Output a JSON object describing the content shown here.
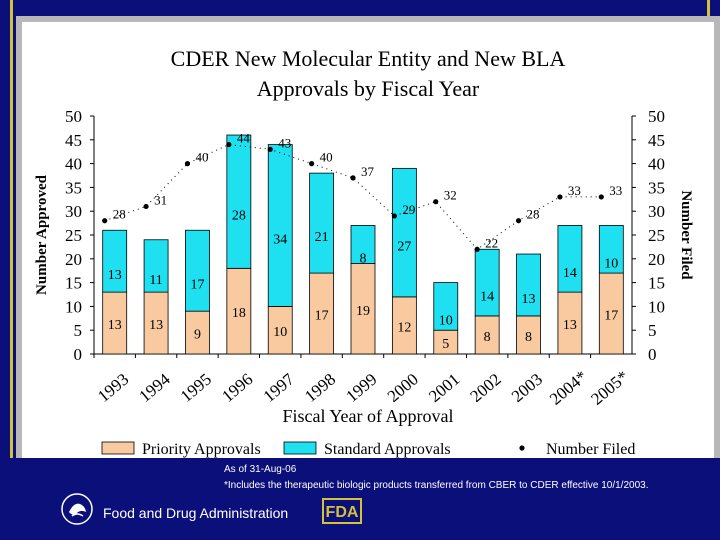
{
  "chart_data": {
    "type": "bar",
    "title": [
      "CDER New Molecular Entity and New BLA",
      "Approvals by Fiscal Year"
    ],
    "xlabel": "Fiscal Year of Approval",
    "ylabel_left": "Number Approved",
    "ylabel_right": "Number Filed",
    "ylim": [
      0,
      50
    ],
    "yticks": [
      0,
      5,
      10,
      15,
      20,
      25,
      30,
      35,
      40,
      45,
      50
    ],
    "categories": [
      "1993",
      "1994",
      "1995",
      "1996",
      "1997",
      "1998",
      "1999",
      "2000",
      "2001",
      "2002",
      "2003",
      "2004*",
      "2005*"
    ],
    "series": [
      {
        "name": "Priority Approvals",
        "kind": "stacked-bar",
        "color": "#f9caa0",
        "values": [
          13,
          13,
          9,
          18,
          10,
          17,
          19,
          12,
          5,
          8,
          8,
          13,
          17
        ]
      },
      {
        "name": "Standard Approvals",
        "kind": "stacked-bar",
        "color": "#1ee0f0",
        "values": [
          13,
          11,
          17,
          28,
          34,
          21,
          8,
          27,
          10,
          14,
          13,
          14,
          10
        ]
      },
      {
        "name": "Number Filed",
        "kind": "dotted-line",
        "color": "#000000",
        "values": [
          28,
          31,
          40,
          44,
          43,
          40,
          37,
          29,
          32,
          22,
          28,
          33,
          33
        ]
      }
    ],
    "legend": [
      "Priority Approvals",
      "Standard Approvals",
      "Number Filed"
    ],
    "legend_position": "bottom",
    "grid": false
  },
  "footer": {
    "as_of": "As of 31-Aug-06",
    "note": "*Includes the therapeutic biologic products transferred from CBER to CDER effective 10/1/2003.",
    "agency": "Food and Drug Administration",
    "hhs_logo": "hhs-eagle-logo",
    "fda_logo": "FDA"
  }
}
